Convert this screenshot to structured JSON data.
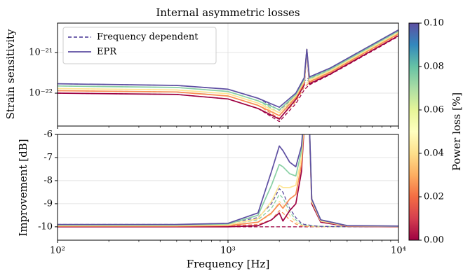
{
  "chart_data": [
    {
      "type": "line",
      "title": "Internal asymmetric losses",
      "ylabel": "Strain sensitivity",
      "xlog": true,
      "ylog": true,
      "grid": true,
      "legend_corner": "upper left",
      "xlim": [
        100,
        10000
      ],
      "ylim": [
        1.55e-23,
        5.3e-21
      ],
      "xticks": [
        100,
        1000,
        10000
      ],
      "yticks": [
        {
          "value": 1e-21,
          "label": "10⁻²¹"
        },
        {
          "value": 1e-22,
          "label": "10⁻²²"
        }
      ],
      "legend": [
        {
          "name": "Frequency dependent",
          "dash": true,
          "color": "#5e4fa2"
        },
        {
          "name": "EPR",
          "dash": false,
          "color": "#5e4fa2"
        }
      ],
      "x": [
        100,
        500,
        1000,
        1500,
        2000,
        2500,
        2800,
        2900,
        3000,
        4000,
        10000
      ],
      "series": [
        {
          "color": "#9e0142",
          "dash": true,
          "values": [
            1e-22,
            9.3e-23,
            7.2e-23,
            4.2e-23,
            2e-23,
            5.5e-23,
            1.2e-22,
            1.4e-22,
            1.6e-22,
            2.9e-22,
            2.5e-21
          ]
        },
        {
          "color": "#f88d52",
          "dash": true,
          "values": [
            1.15e-22,
            1.07e-22,
            8.5e-23,
            5e-23,
            2.4e-23,
            6.2e-23,
            1.4e-22,
            1.6e-22,
            1.8e-22,
            3.2e-22,
            2.8e-21
          ]
        },
        {
          "color": "#fee593",
          "dash": true,
          "values": [
            1.3e-22,
            1.2e-22,
            9.7e-23,
            5.7e-23,
            2.8e-23,
            7e-23,
            1.6e-22,
            1.8e-22,
            2e-22,
            3.5e-22,
            3e-21
          ]
        },
        {
          "color": "#89d0a4",
          "dash": true,
          "values": [
            1.5e-22,
            1.38e-22,
            1.1e-22,
            6.5e-23,
            3.3e-23,
            7.8e-23,
            1.8e-22,
            2e-22,
            2.2e-22,
            3.8e-22,
            3.3e-21
          ]
        },
        {
          "color": "#5e4fa2",
          "dash": true,
          "values": [
            1.7e-22,
            1.55e-22,
            1.25e-22,
            7.5e-23,
            3.8e-23,
            8.5e-23,
            2e-22,
            2.2e-22,
            2.4e-22,
            4.1e-22,
            3.5e-21
          ]
        },
        {
          "color": "#9e0142",
          "dash": false,
          "values": [
            1e-22,
            9.3e-23,
            7.2e-23,
            4.2e-23,
            2.3e-23,
            7e-23,
            1.6e-22,
            1.2e-21,
            1.7e-22,
            3e-22,
            2.6e-21
          ]
        },
        {
          "color": "#f88d52",
          "dash": false,
          "values": [
            1.15e-22,
            1.07e-22,
            8.5e-23,
            5e-23,
            2.8e-23,
            7.8e-23,
            1.8e-22,
            1.2e-21,
            1.9e-22,
            3.3e-22,
            2.9e-21
          ]
        },
        {
          "color": "#fee593",
          "dash": false,
          "values": [
            1.3e-22,
            1.2e-22,
            9.7e-23,
            5.7e-23,
            3.3e-23,
            8.5e-23,
            2e-22,
            1.2e-21,
            2.1e-22,
            3.6e-22,
            3.1e-21
          ]
        },
        {
          "color": "#89d0a4",
          "dash": false,
          "values": [
            1.5e-22,
            1.38e-22,
            1.1e-22,
            6.5e-23,
            3.9e-23,
            9.2e-23,
            2.2e-22,
            1.2e-21,
            2.3e-22,
            3.9e-22,
            3.4e-21
          ]
        },
        {
          "color": "#5e4fa2",
          "dash": false,
          "values": [
            1.7e-22,
            1.55e-22,
            1.25e-22,
            7.5e-23,
            4.5e-23,
            1e-22,
            2.4e-22,
            1.2e-21,
            2.5e-22,
            4.2e-22,
            3.6e-21
          ]
        }
      ],
      "colorbar": {
        "label": "Power loss [%]",
        "lim": [
          0,
          0.1
        ],
        "ticks": [
          {
            "value": 0,
            "label": "0.00"
          },
          {
            "value": 0.02,
            "label": "0.02"
          },
          {
            "value": 0.04,
            "label": "0.04"
          },
          {
            "value": 0.06,
            "label": "0.06"
          },
          {
            "value": 0.08,
            "label": "0.08"
          },
          {
            "value": 0.1,
            "label": "0.10"
          }
        ],
        "colors": [
          "#9e0142",
          "#d53e4f",
          "#f46d43",
          "#fdae61",
          "#fee08b",
          "#ffffbf",
          "#e6f598",
          "#abdda4",
          "#66c2a5",
          "#3288bd",
          "#5e4fa2"
        ]
      }
    },
    {
      "type": "line",
      "ylabel": "Improvement [dB]",
      "xlabel": "Frequency [Hz]",
      "xlog": true,
      "ylog": false,
      "grid": true,
      "xlim": [
        100,
        10000
      ],
      "ylim": [
        -10.58,
        -6
      ],
      "xticks": [
        {
          "value": 100,
          "label": "10²"
        },
        {
          "value": 1000,
          "label": "10³"
        },
        {
          "value": 10000,
          "label": "10⁴"
        }
      ],
      "yticks": [
        -6,
        -7,
        -8,
        -9,
        -10
      ],
      "x": [
        100,
        500,
        1000,
        1500,
        1800,
        2000,
        2100,
        2300,
        2500,
        2700,
        2800,
        2900,
        3100,
        3500,
        5000,
        10000
      ],
      "series": [
        {
          "color": "#9e0142",
          "dash": true,
          "values": [
            -10,
            -10,
            -10,
            -10,
            -10,
            -10,
            -10,
            -10,
            -10,
            -10,
            -10,
            -10,
            -10,
            -10,
            -10,
            -10
          ]
        },
        {
          "color": "#f88d52",
          "dash": true,
          "values": [
            -9.98,
            -9.98,
            -9.96,
            -9.9,
            -9.7,
            -9.3,
            -9.4,
            -9.7,
            -9.88,
            -9.96,
            -9.97,
            -9.98,
            -9.99,
            -10,
            -10,
            -10
          ]
        },
        {
          "color": "#fee593",
          "dash": true,
          "values": [
            -9.96,
            -9.96,
            -9.93,
            -9.8,
            -9.45,
            -8.9,
            -9.05,
            -9.5,
            -9.8,
            -9.93,
            -9.95,
            -9.96,
            -9.97,
            -9.99,
            -10,
            -10
          ]
        },
        {
          "color": "#89d0a4",
          "dash": true,
          "values": [
            -9.93,
            -9.93,
            -9.9,
            -9.7,
            -9.2,
            -8.6,
            -8.75,
            -9.35,
            -9.7,
            -9.9,
            -9.93,
            -9.94,
            -9.96,
            -9.98,
            -10,
            -10
          ]
        },
        {
          "color": "#5e4fa2",
          "dash": true,
          "values": [
            -9.9,
            -9.9,
            -9.85,
            -9.6,
            -9.0,
            -8.35,
            -8.5,
            -9.2,
            -9.6,
            -9.85,
            -9.9,
            -9.9,
            -9.95,
            -9.98,
            -10,
            -10
          ]
        },
        {
          "color": "#9e0142",
          "dash": false,
          "values": [
            -10,
            -10,
            -10,
            -9.95,
            -9.7,
            -9.4,
            -9.75,
            -9.3,
            -9.0,
            -7.6,
            -5.6,
            -2,
            -9.0,
            -9.8,
            -9.98,
            -10
          ]
        },
        {
          "color": "#f88d52",
          "dash": false,
          "values": [
            -9.97,
            -9.97,
            -9.95,
            -9.8,
            -9.4,
            -9.0,
            -9.2,
            -8.8,
            -8.6,
            -7.3,
            -5.4,
            -2,
            -8.9,
            -9.75,
            -9.97,
            -9.99
          ]
        },
        {
          "color": "#fee593",
          "dash": false,
          "values": [
            -9.95,
            -9.95,
            -9.92,
            -9.65,
            -8.9,
            -8.2,
            -8.3,
            -8.3,
            -8.2,
            -7,
            -5.2,
            -2,
            -8.9,
            -9.75,
            -9.96,
            -9.98
          ]
        },
        {
          "color": "#89d0a4",
          "dash": false,
          "values": [
            -9.92,
            -9.92,
            -9.88,
            -9.5,
            -8.2,
            -7.3,
            -7.4,
            -7.7,
            -7.8,
            -6.7,
            -5,
            -2,
            -8.8,
            -9.7,
            -9.95,
            -9.97
          ]
        },
        {
          "color": "#5e4fa2",
          "dash": false,
          "values": [
            -9.9,
            -9.9,
            -9.85,
            -9.4,
            -7.6,
            -6.5,
            -6.7,
            -7.2,
            -7.4,
            -6.5,
            -5,
            -2,
            -8.8,
            -9.7,
            -9.95,
            -9.97
          ]
        }
      ]
    }
  ]
}
